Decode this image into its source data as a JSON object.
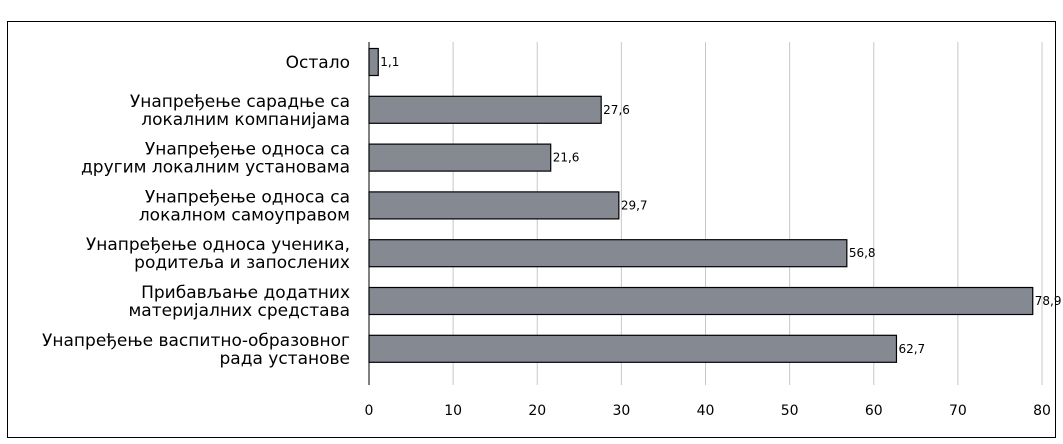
{
  "chart_data": {
    "type": "bar",
    "orientation": "horizontal",
    "categories": [
      [
        "Остало"
      ],
      [
        "Унапређење сарадње са",
        "локалним компанијама"
      ],
      [
        "Унапређење односа са",
        "другим локалним установама"
      ],
      [
        "Унапређење односа са",
        "локалном самоуправом"
      ],
      [
        "Унапређење односа ученика,",
        "родитеља и запослених"
      ],
      [
        "Прибављање додатних",
        "материјалних средстава"
      ],
      [
        "Унапређење васпитно-образовног",
        "рада установе"
      ]
    ],
    "values": [
      1.1,
      27.6,
      21.6,
      29.7,
      56.8,
      78.9,
      62.7
    ],
    "value_labels": [
      "1,1",
      "27,6",
      "21,6",
      "29,7",
      "56,8",
      "78,9",
      "62,7"
    ],
    "xlim": [
      0,
      80
    ],
    "xticks": [
      0,
      10,
      20,
      30,
      40,
      50,
      60,
      70,
      80
    ],
    "grid": true,
    "bar_color": "#858a92",
    "bar_edge_color": "#000000",
    "grid_color": "#c8c8c8"
  }
}
